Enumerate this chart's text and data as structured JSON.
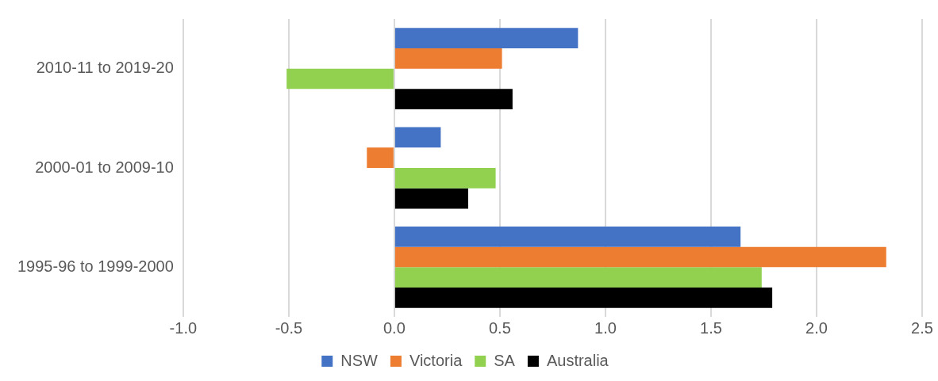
{
  "chart_data": {
    "type": "bar",
    "orientation": "horizontal",
    "categories": [
      "2010-11 to 2019-20",
      "2000-01 to 2009-10",
      "1995-96 to 1999-2000"
    ],
    "series": [
      {
        "name": "NSW",
        "color": "#4472c4",
        "values": [
          0.87,
          0.22,
          1.64
        ]
      },
      {
        "name": "Victoria",
        "color": "#ed7d31",
        "values": [
          0.51,
          -0.13,
          2.33
        ]
      },
      {
        "name": "SA",
        "color": "#92d050",
        "values": [
          -0.51,
          0.48,
          1.74
        ]
      },
      {
        "name": "Australia",
        "color": "#000000",
        "values": [
          0.56,
          0.35,
          1.79
        ]
      }
    ],
    "xlim": [
      -1,
      2.5
    ],
    "xticks": [
      {
        "value": -1,
        "label": "-1.0"
      },
      {
        "value": -0.5,
        "label": "-0.5"
      },
      {
        "value": 0,
        "label": "0.0"
      },
      {
        "value": 0.5,
        "label": "0.5"
      },
      {
        "value": 1,
        "label": "1.0"
      },
      {
        "value": 1.5,
        "label": "1.5"
      },
      {
        "value": 2,
        "label": "2.0"
      },
      {
        "value": 2.5,
        "label": "2.5"
      }
    ],
    "grid": "x",
    "legend": "bottom"
  }
}
